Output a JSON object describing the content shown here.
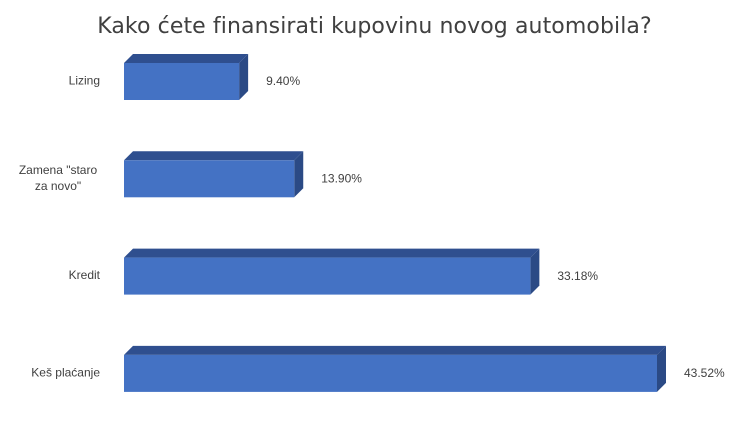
{
  "chart_data": {
    "type": "bar",
    "orientation": "horizontal",
    "style": "3d",
    "title": "Kako ćete finansirati kupovinu novog automobila?",
    "categories": [
      "Lizing",
      "Zamena \"staro za novo\"",
      "Kredit",
      "Keš plaćanje"
    ],
    "category_lines": [
      [
        "Lizing"
      ],
      [
        "Zamena \"staro",
        "za novo\""
      ],
      [
        "Kredit"
      ],
      [
        "Keš plaćanje"
      ]
    ],
    "values": [
      9.4,
      13.9,
      33.18,
      43.52
    ],
    "data_labels": [
      "9.40%",
      "13.90%",
      "33.18%",
      "43.52%"
    ],
    "xlim": [
      0,
      43.52
    ],
    "grid": false,
    "legend": "none",
    "colors": {
      "bar_front": "#4472c4",
      "bar_top": "#2f4f8f",
      "bar_side": "#2b4a85",
      "label_text": "#404040"
    }
  }
}
